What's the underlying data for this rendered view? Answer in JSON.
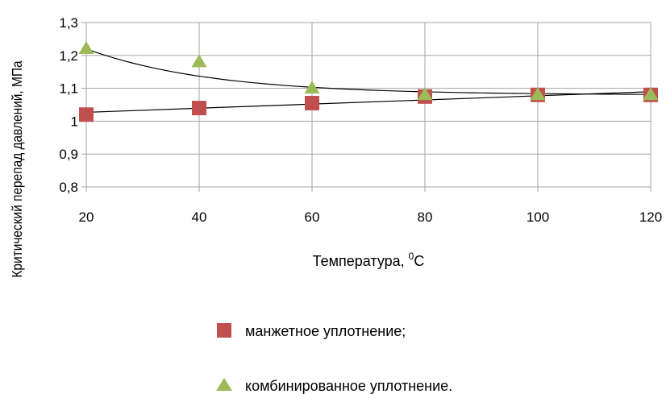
{
  "chart_data": {
    "type": "scatter",
    "title": "",
    "xlabel": "Температура, ",
    "xlabel_superscript": "0",
    "xlabel_unit": "С",
    "ylabel": "Критический перепад давлений, МПа",
    "xlim": [
      20,
      120
    ],
    "ylim": [
      0.8,
      1.3
    ],
    "x_ticks": [
      20,
      40,
      60,
      80,
      100,
      120
    ],
    "x_tick_labels": [
      "20",
      "40",
      "60",
      "80",
      "100",
      "120"
    ],
    "y_ticks": [
      0.8,
      0.9,
      1.0,
      1.1,
      1.2,
      1.3
    ],
    "y_tick_labels": [
      "0,8",
      "0,9",
      "1",
      "1,1",
      "1,2",
      "1,3"
    ],
    "grid": true,
    "legend_position": "bottom-center",
    "series": [
      {
        "name": "манжетное уплотнение;",
        "marker": "square",
        "color": "#c0504d",
        "x": [
          20,
          40,
          60,
          80,
          100,
          120
        ],
        "y": [
          1.02,
          1.04,
          1.055,
          1.075,
          1.08,
          1.08
        ],
        "trendline": "linear"
      },
      {
        "name": "комбинированное уплотнение.",
        "marker": "triangle",
        "color": "#9bbb59",
        "x": [
          20,
          40,
          60,
          80,
          100,
          120
        ],
        "y": [
          1.22,
          1.18,
          1.1,
          1.08,
          1.08,
          1.08
        ],
        "trendline": "curve"
      }
    ],
    "colors": {
      "grid": "#a6a6a6",
      "trendline": "#000000"
    }
  }
}
